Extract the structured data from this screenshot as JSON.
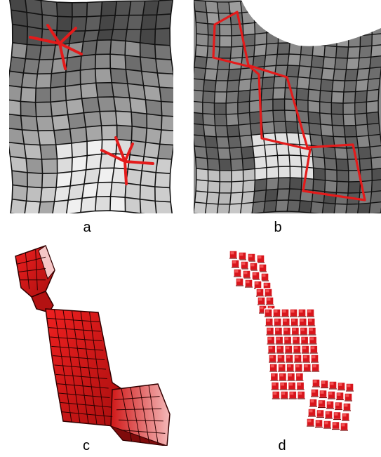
{
  "figure": {
    "panels": [
      {
        "id": "a",
        "caption": "a",
        "content": "quad-mesh-with-two-singular-vertices",
        "mark_color": "#e31b1b"
      },
      {
        "id": "b",
        "caption": "b",
        "content": "quad-mesh-with-red-region-outline",
        "mark_color": "#e31b1b"
      },
      {
        "id": "c",
        "caption": "c",
        "content": "red-hexahedral-solid-mesh",
        "mark_color": "#c61414"
      },
      {
        "id": "d",
        "caption": "d",
        "content": "red-exploded-hexahedral-elements",
        "mark_color": "#e0161d"
      }
    ]
  }
}
